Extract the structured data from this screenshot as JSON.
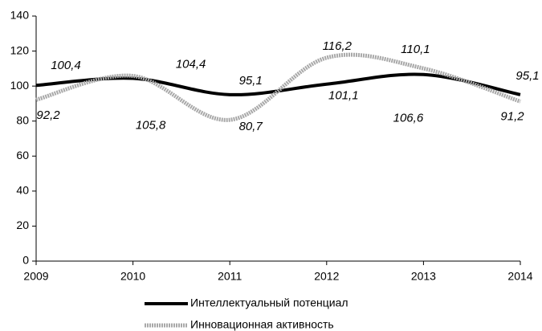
{
  "chart_data": {
    "type": "line",
    "categories": [
      "2009",
      "2010",
      "2011",
      "2012",
      "2013",
      "2014"
    ],
    "series": [
      {
        "name": "Интеллектуальный потенциал",
        "color": "#000000",
        "values": [
          100.4,
          104.4,
          95.1,
          101.1,
          106.6,
          95.1
        ],
        "value_labels": [
          "100,4",
          "104,4",
          "95,1",
          "101,1",
          "106,6",
          "95,1"
        ]
      },
      {
        "name": "Инновационная активность",
        "color": "#a8a8a8",
        "values": [
          92.2,
          105.8,
          80.7,
          116.2,
          110.1,
          91.2
        ],
        "value_labels": [
          "92,2",
          "105,8",
          "80,7",
          "116,2",
          "110,1",
          "91,2"
        ]
      }
    ],
    "ylim": [
      0,
      140
    ],
    "yticks": [
      0,
      20,
      40,
      60,
      80,
      100,
      120,
      140
    ],
    "grid": false
  }
}
